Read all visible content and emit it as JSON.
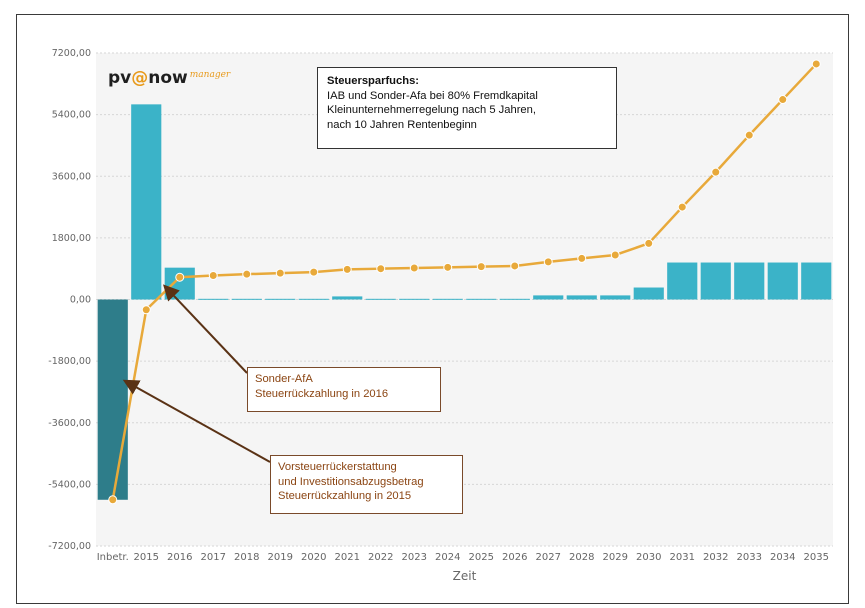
{
  "logo": {
    "part1": "pv",
    "part2": "@",
    "part3": "now",
    "part4": "manager"
  },
  "info_box": {
    "title": "Steuersparfuchs:",
    "lines": [
      "IAB und Sonder-Afa bei 80% Fremdkapital",
      "Kleinunternehmerregelung nach 5 Jahren,",
      "nach 10 Jahren Rentenbeginn"
    ]
  },
  "annotations": [
    {
      "lines": [
        "Sonder-AfA",
        "Steuerrückzahlung in 2016"
      ]
    },
    {
      "lines": [
        "Vorsteuerrückerstattung",
        "und Investitionsabzugsbetrag",
        "Steuerrückzahlung in 2015"
      ]
    }
  ],
  "colors": {
    "bar": "#3bb3c8",
    "bar_negative": "#2e7d8a",
    "line": "#e8a93a",
    "annotation": "#8b4513",
    "plot_bg": "#f5f5f5"
  },
  "chart_data": {
    "type": "bar",
    "title": "",
    "xlabel": "Zeit",
    "ylabel": "",
    "ylim": [
      -7200,
      7200
    ],
    "yticks": [
      "7200,00",
      "5400,00",
      "3600,00",
      "1800,00",
      "0,00",
      "-1800,00",
      "-3600,00",
      "-5400,00",
      "-7200,00"
    ],
    "categories": [
      "Inbetr.",
      "2015",
      "2016",
      "2017",
      "2018",
      "2019",
      "2020",
      "2021",
      "2022",
      "2023",
      "2024",
      "2025",
      "2026",
      "2027",
      "2028",
      "2029",
      "2030",
      "2031",
      "2032",
      "2033",
      "2034",
      "2035"
    ],
    "series": [
      {
        "type": "bar",
        "values": [
          -5850,
          5700,
          930,
          20,
          20,
          20,
          20,
          90,
          20,
          20,
          20,
          20,
          20,
          120,
          120,
          120,
          350,
          1080,
          1080,
          1080,
          1080,
          1080
        ]
      },
      {
        "type": "line",
        "values": [
          -5850,
          -300,
          650,
          700,
          740,
          770,
          800,
          880,
          900,
          920,
          940,
          960,
          980,
          1100,
          1200,
          1300,
          1640,
          2700,
          3720,
          4800,
          5840,
          6880
        ]
      }
    ],
    "grid": true,
    "legend": "none"
  }
}
